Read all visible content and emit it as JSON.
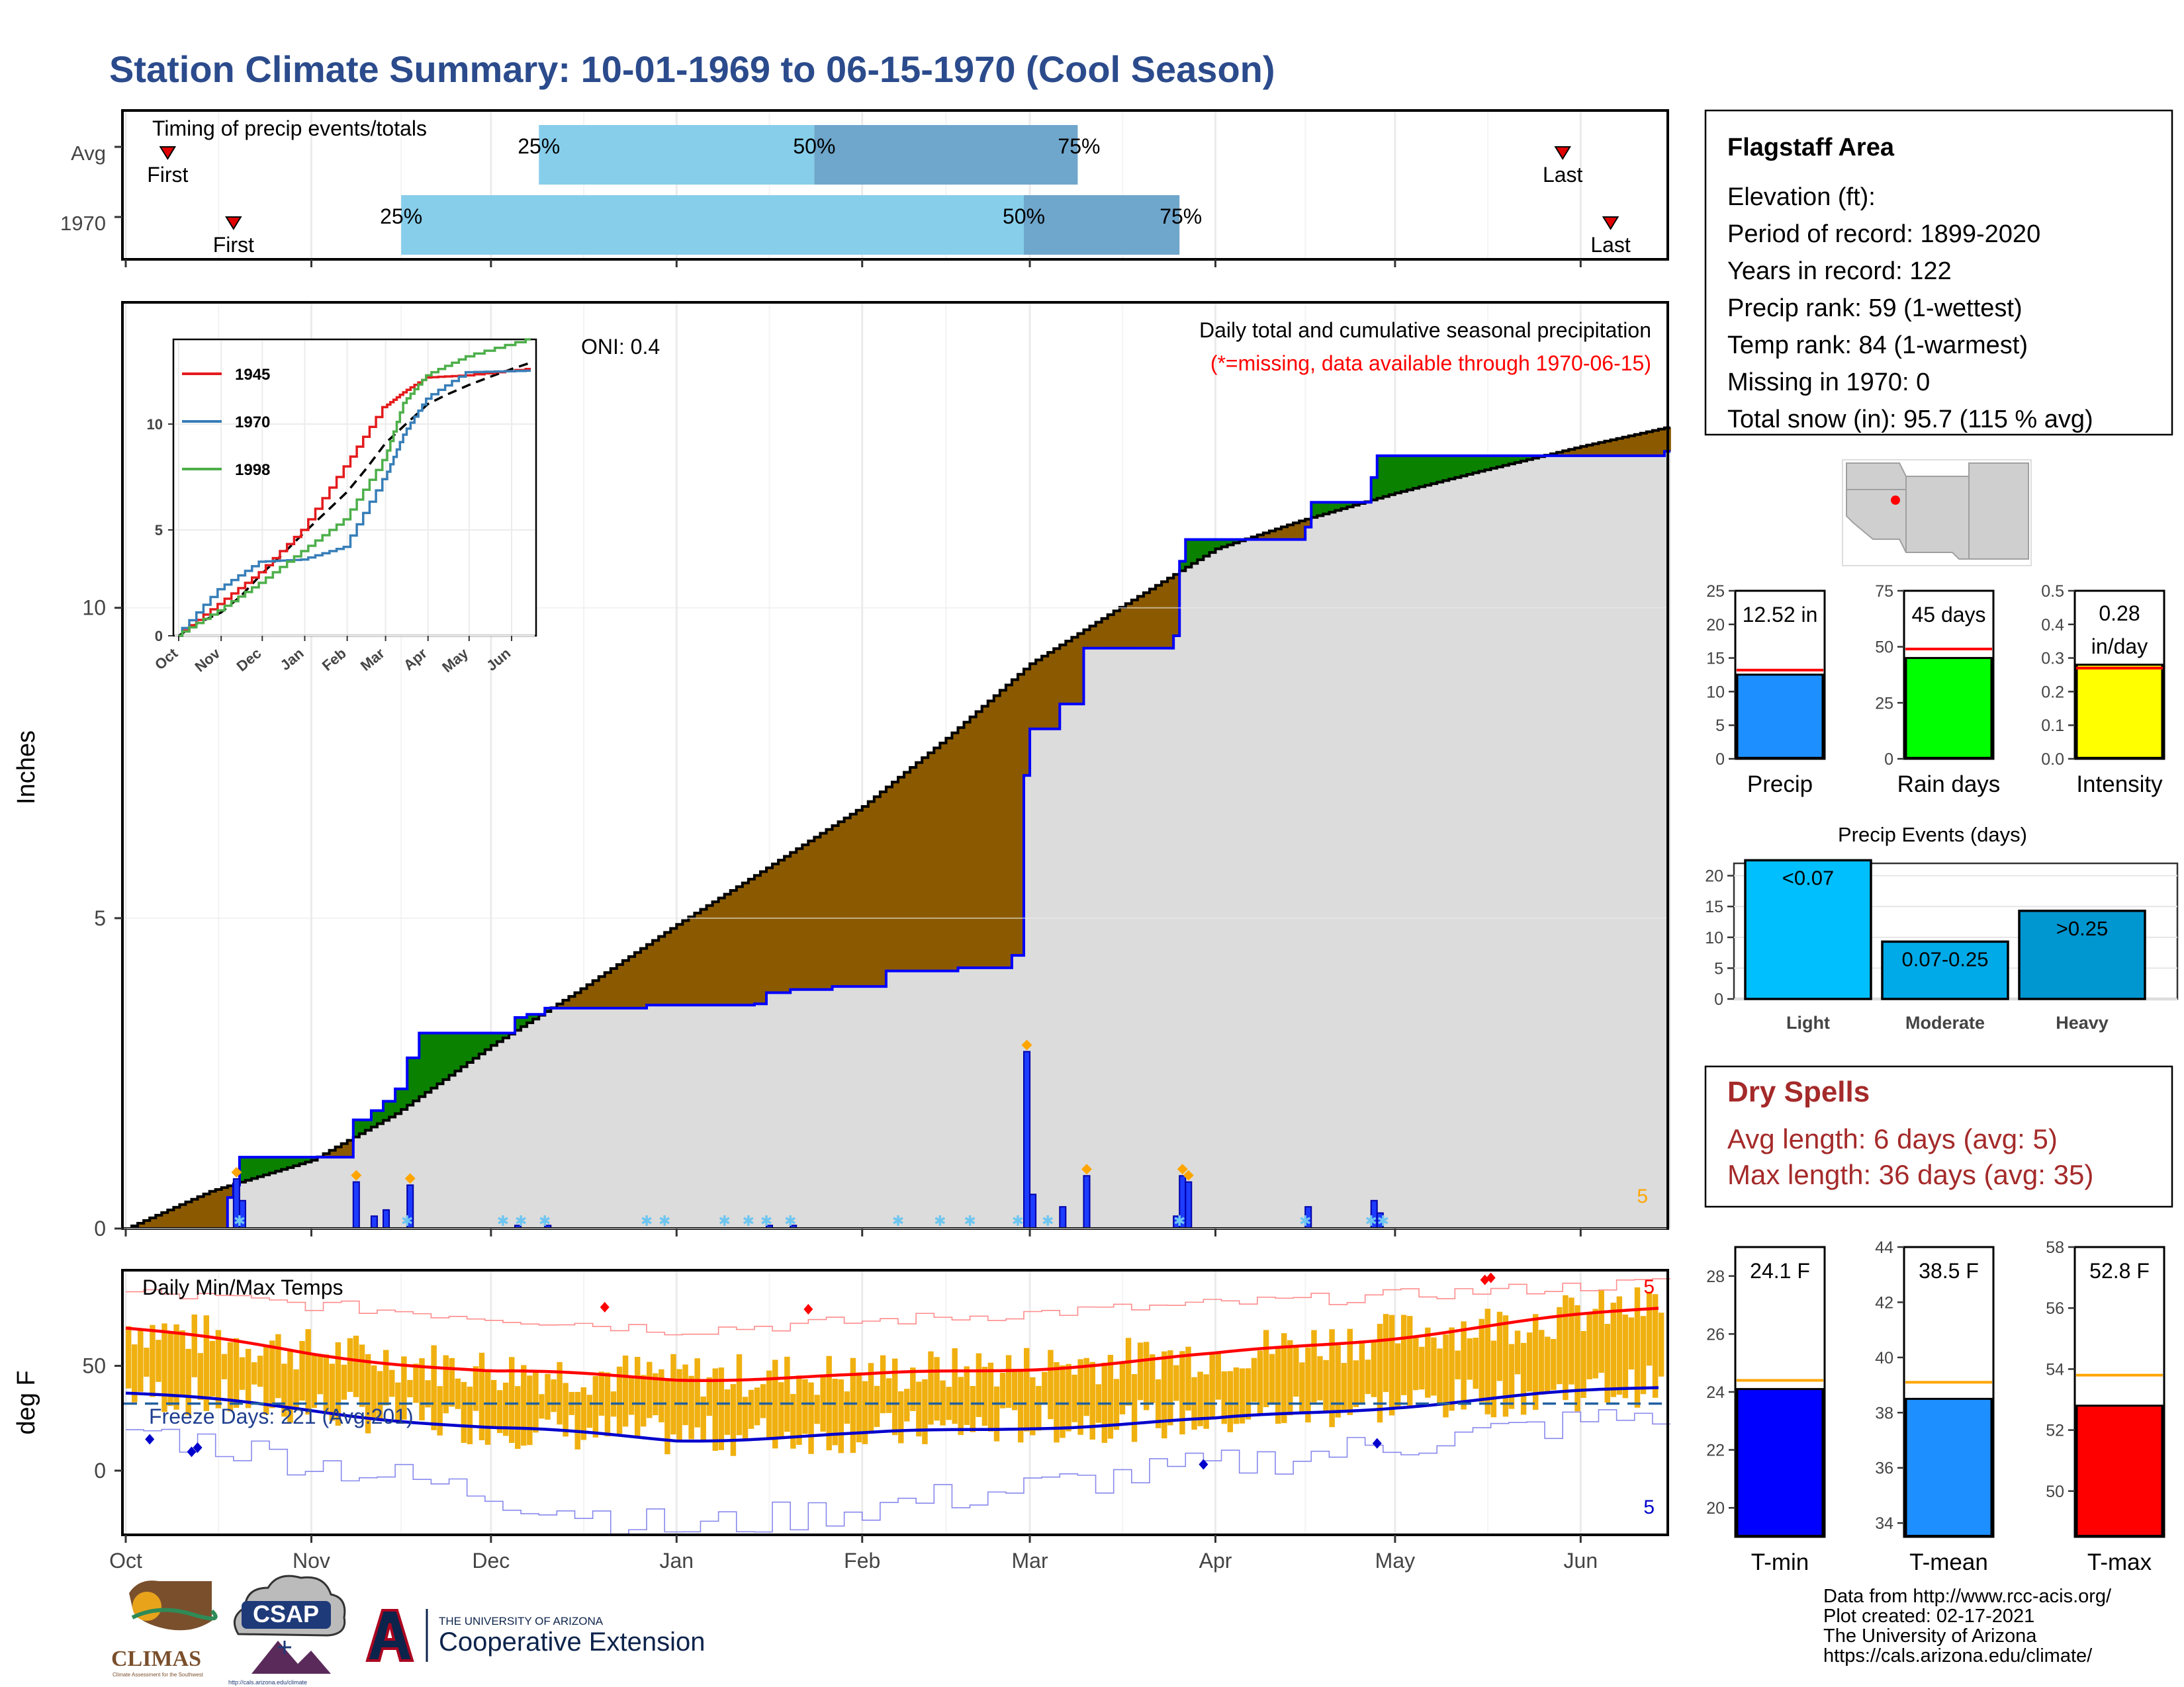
{
  "title": "Station Climate Summary: 10-01-1969 to 06-15-1970 (Cool Season)",
  "colors": {
    "title": "#2b4b8c",
    "precip_fill": "#dcdcdc",
    "above_avg": "#0a8200",
    "below_avg": "#8b5a00",
    "obs_line": "#0000ff",
    "timing_light": "#87ceeb",
    "timing_dark": "#6fa6cc",
    "temp_bar": "#f0b010",
    "tmax_avg": "#ff0000",
    "tmin_avg": "#0000cc",
    "dry_spells": "#a52a2a"
  },
  "timing": {
    "title": "Timing of precip events/totals",
    "rows": [
      {
        "label": "Avg",
        "first_label": "First",
        "last_label": "Last",
        "p25_label": "25%",
        "p50_label": "50%",
        "p75_label": "75%",
        "first": "1969-10-08",
        "p25": "1969-12-09",
        "p50": "1970-01-24",
        "p75": "1970-03-09",
        "last": "1970-05-29"
      },
      {
        "label": "1970",
        "first_label": "First",
        "last_label": "Last",
        "p25_label": "25%",
        "p50_label": "50%",
        "p75_label": "75%",
        "first": "1969-10-19",
        "p25": "1969-11-16",
        "p50": "1970-02-28",
        "p75": "1970-03-26",
        "last": "1970-06-06"
      }
    ]
  },
  "precip_panel": {
    "ylabel": "Inches",
    "title": "Daily total and cumulative seasonal precipitation",
    "missing_note": "(*=missing, data available through 1970-06-15)",
    "oni": "ONI: 0.4",
    "count_label": "5",
    "yticks": [
      "0",
      "5",
      "10"
    ]
  },
  "inset": {
    "yticks": [
      "0",
      "5",
      "10"
    ],
    "months": [
      "Oct",
      "Nov",
      "Dec",
      "Jan",
      "Feb",
      "Mar",
      "Apr",
      "May",
      "Jun"
    ],
    "legend": [
      {
        "name": "1945",
        "color": "#e41a1c"
      },
      {
        "name": "1970",
        "color": "#377eb8"
      },
      {
        "name": "1998",
        "color": "#4daf4a"
      }
    ]
  },
  "temp_panel": {
    "ylabel": "deg F",
    "title": "Daily Min/Max Temps",
    "freeze": "Freeze Days: 221 (Avg:201)",
    "max_count": "5",
    "min_count": "5",
    "yticks": [
      "0",
      "50"
    ]
  },
  "months": [
    "Oct",
    "Nov",
    "Dec",
    "Jan",
    "Feb",
    "Mar",
    "Apr",
    "May",
    "Jun"
  ],
  "info": {
    "name": "Flagstaff Area",
    "lines": [
      "Elevation (ft):",
      "Period of record: 1899-2020",
      "Years in record: 122",
      "Precip rank: 59 (1-wettest)",
      "Temp rank: 84 (1-warmest)",
      "Missing in 1970: 0",
      "Total snow (in): 95.7 (115 % avg)"
    ]
  },
  "chart_data": [
    {
      "type": "area",
      "title": "Daily total and cumulative seasonal precipitation",
      "ylabel": "Inches",
      "ylim": [
        0,
        14
      ],
      "x_range": [
        "1969-10-01",
        "1970-06-15"
      ],
      "series": [
        {
          "name": "observed cumulative",
          "points": [
            [
              "1969-10-01",
              0
            ],
            [
              "1969-10-18",
              0.5
            ],
            [
              "1969-10-19",
              0.7
            ],
            [
              "1969-10-20",
              1.15
            ],
            [
              "1969-11-07",
              1.15
            ],
            [
              "1969-11-08",
              1.75
            ],
            [
              "1969-11-10",
              1.75
            ],
            [
              "1969-11-11",
              1.9
            ],
            [
              "1969-11-13",
              2.05
            ],
            [
              "1969-11-15",
              2.25
            ],
            [
              "1969-11-17",
              2.75
            ],
            [
              "1969-11-19",
              3.15
            ],
            [
              "1969-12-04",
              3.15
            ],
            [
              "1969-12-05",
              3.4
            ],
            [
              "1969-12-07",
              3.45
            ],
            [
              "1969-12-10",
              3.55
            ],
            [
              "1969-12-26",
              3.55
            ],
            [
              "1969-12-27",
              3.6
            ],
            [
              "1970-01-14",
              3.62
            ],
            [
              "1970-01-16",
              3.8
            ],
            [
              "1970-01-20",
              3.85
            ],
            [
              "1970-01-27",
              3.9
            ],
            [
              "1970-02-05",
              4.15
            ],
            [
              "1970-02-17",
              4.2
            ],
            [
              "1970-02-26",
              4.4
            ],
            [
              "1970-02-28",
              7.3
            ],
            [
              "1970-03-01",
              8.05
            ],
            [
              "1970-03-06",
              8.45
            ],
            [
              "1970-03-10",
              9.35
            ],
            [
              "1970-03-25",
              9.55
            ],
            [
              "1970-03-26",
              10.75
            ],
            [
              "1970-03-27",
              11.1
            ],
            [
              "1970-04-16",
              11.3
            ],
            [
              "1970-04-17",
              11.7
            ],
            [
              "1970-04-27",
              12.1
            ],
            [
              "1970-04-28",
              12.45
            ],
            [
              "1970-06-15",
              12.52
            ]
          ]
        },
        {
          "name": "average cumulative",
          "points": [
            [
              "1969-10-01",
              0
            ],
            [
              "1969-10-15",
              0.6
            ],
            [
              "1969-11-01",
              1.1
            ],
            [
              "1969-11-15",
              1.85
            ],
            [
              "1969-12-01",
              2.95
            ],
            [
              "1969-12-15",
              3.8
            ],
            [
              "1970-01-01",
              4.9
            ],
            [
              "1970-01-15",
              5.75
            ],
            [
              "1970-02-01",
              6.8
            ],
            [
              "1970-02-15",
              7.9
            ],
            [
              "1970-03-01",
              9.1
            ],
            [
              "1970-03-15",
              9.95
            ],
            [
              "1970-04-01",
              10.95
            ],
            [
              "1970-04-15",
              11.4
            ],
            [
              "1970-05-01",
              11.85
            ],
            [
              "1970-05-15",
              12.2
            ],
            [
              "1970-06-01",
              12.6
            ],
            [
              "1970-06-15",
              12.9
            ]
          ]
        },
        {
          "name": "daily precip",
          "points": [
            [
              "1969-10-19",
              0.8
            ],
            [
              "1969-10-20",
              0.45
            ],
            [
              "1969-11-08",
              0.75
            ],
            [
              "1969-11-11",
              0.2
            ],
            [
              "1969-11-13",
              0.3
            ],
            [
              "1969-11-17",
              0.7
            ],
            [
              "1969-12-05",
              0.05
            ],
            [
              "1969-12-10",
              0.05
            ],
            [
              "1970-01-16",
              0.05
            ],
            [
              "1970-01-20",
              0.05
            ],
            [
              "1970-02-28",
              2.85
            ],
            [
              "1970-03-01",
              0.55
            ],
            [
              "1970-03-06",
              0.35
            ],
            [
              "1970-03-10",
              0.85
            ],
            [
              "1970-03-25",
              0.2
            ],
            [
              "1970-03-26",
              0.85
            ],
            [
              "1970-03-27",
              0.75
            ],
            [
              "1970-04-16",
              0.35
            ],
            [
              "1970-04-27",
              0.45
            ],
            [
              "1970-04-28",
              0.25
            ]
          ]
        }
      ]
    },
    {
      "type": "line",
      "title": "inset cumulative precipitation",
      "ylim": [
        0,
        13
      ],
      "series": [
        {
          "name": "1945",
          "points": [
            [
              "10-01",
              0
            ],
            [
              "11-01",
              1.5
            ],
            [
              "12-01",
              3
            ],
            [
              "01-01",
              5
            ],
            [
              "02-01",
              8
            ],
            [
              "03-01",
              10.8
            ],
            [
              "03-15",
              11.5
            ],
            [
              "04-01",
              12.2
            ],
            [
              "05-01",
              12.3
            ],
            [
              "06-15",
              12.6
            ]
          ]
        },
        {
          "name": "1970",
          "points": [
            [
              "10-01",
              0
            ],
            [
              "11-01",
              2.2
            ],
            [
              "12-01",
              3.5
            ],
            [
              "01-01",
              3.6
            ],
            [
              "02-01",
              4.2
            ],
            [
              "03-01",
              7.4
            ],
            [
              "03-15",
              9.5
            ],
            [
              "04-01",
              11.2
            ],
            [
              "05-01",
              12.45
            ],
            [
              "06-15",
              12.52
            ]
          ]
        },
        {
          "name": "1998",
          "points": [
            [
              "10-01",
              0
            ],
            [
              "11-01",
              1.2
            ],
            [
              "12-01",
              2.5
            ],
            [
              "01-01",
              4
            ],
            [
              "02-01",
              5.5
            ],
            [
              "03-01",
              8.3
            ],
            [
              "03-15",
              11
            ],
            [
              "04-01",
              12.3
            ],
            [
              "05-01",
              13.2
            ],
            [
              "06-15",
              14
            ]
          ]
        }
      ]
    },
    {
      "type": "bar",
      "title": "Daily Min/Max Temps",
      "ylabel": "deg F",
      "ylim": [
        -30,
        95
      ],
      "series": [
        {
          "name": "avg max",
          "points": [
            [
              "1969-10-01",
              68
            ],
            [
              "1969-11-01",
              56
            ],
            [
              "1969-12-01",
              47
            ],
            [
              "1970-01-01",
              44
            ],
            [
              "1970-02-01",
              45
            ],
            [
              "1970-03-01",
              49
            ],
            [
              "1970-04-01",
              55
            ],
            [
              "1970-05-01",
              64
            ],
            [
              "1970-06-15",
              78
            ]
          ]
        },
        {
          "name": "avg min",
          "points": [
            [
              "1969-10-01",
              37
            ],
            [
              "1969-11-01",
              29
            ],
            [
              "1969-12-01",
              20
            ],
            [
              "1970-01-01",
              15
            ],
            [
              "1970-02-01",
              17
            ],
            [
              "1970-03-01",
              21
            ],
            [
              "1970-04-01",
              24
            ],
            [
              "1970-05-01",
              31
            ],
            [
              "1970-06-15",
              40
            ]
          ]
        },
        {
          "name": "record max",
          "points": [
            [
              "1969-10-01",
              85
            ],
            [
              "1970-01-01",
              67
            ],
            [
              "1970-06-15",
              90
            ]
          ]
        },
        {
          "name": "record min",
          "points": [
            [
              "1969-10-01",
              20
            ],
            [
              "1970-01-01",
              -28
            ],
            [
              "1970-06-15",
              28
            ]
          ]
        }
      ],
      "freeze_line": 32
    },
    {
      "type": "bar",
      "title": "Precip",
      "categories": [
        "Precip"
      ],
      "values": [
        12.52
      ],
      "value_label": "12.52 in",
      "average": 13.2,
      "ylim": [
        0,
        25
      ],
      "yticks": [
        "0",
        "5",
        "10",
        "15",
        "20",
        "25"
      ]
    },
    {
      "type": "bar",
      "title": "Rain days",
      "categories": [
        "Rain days"
      ],
      "values": [
        45
      ],
      "value_label": "45 days",
      "average": 49,
      "ylim": [
        0,
        75
      ],
      "yticks": [
        "0",
        "25",
        "50",
        "75"
      ]
    },
    {
      "type": "bar",
      "title": "Intensity",
      "categories": [
        "Intensity"
      ],
      "values": [
        0.28
      ],
      "value_label_1": "0.28",
      "value_label_2": "in/day",
      "average": 0.27,
      "ylim": [
        0,
        0.5
      ],
      "yticks": [
        "0.0",
        "0.1",
        "0.2",
        "0.3",
        "0.4",
        "0.5"
      ]
    },
    {
      "type": "bar",
      "title": "Precip Events (days)",
      "categories": [
        "Light",
        "Moderate",
        "Heavy"
      ],
      "bar_labels": [
        "<0.07",
        "0.07-0.25",
        ">0.25"
      ],
      "values": [
        22.5,
        9.3,
        14.3
      ],
      "ylim": [
        0,
        22
      ],
      "yticks": [
        "0",
        "5",
        "10",
        "15",
        "20"
      ]
    },
    {
      "type": "bar",
      "title": "T-min",
      "categories": [
        "T-min"
      ],
      "values": [
        24.1
      ],
      "value_label": "24.1 F",
      "average": 24.4,
      "ylim": [
        19,
        29
      ],
      "yticks": [
        "20",
        "22",
        "24",
        "26",
        "28"
      ]
    },
    {
      "type": "bar",
      "title": "T-mean",
      "categories": [
        "T-mean"
      ],
      "values": [
        38.5
      ],
      "value_label": "38.5 F",
      "average": 39.1,
      "ylim": [
        33.5,
        44
      ],
      "yticks": [
        "34",
        "36",
        "38",
        "40",
        "42",
        "44"
      ]
    },
    {
      "type": "bar",
      "title": "T-max",
      "categories": [
        "T-max"
      ],
      "values": [
        52.8
      ],
      "value_label": "52.8 F",
      "average": 53.8,
      "ylim": [
        48.5,
        58
      ],
      "yticks": [
        "50",
        "52",
        "54",
        "56",
        "58"
      ]
    }
  ],
  "dry_spells": {
    "title": "Dry Spells",
    "avg": "Avg length: 6 days (avg: 5)",
    "max": "Max length: 36 days (avg: 35)"
  },
  "footer": {
    "lines": [
      "Data from http://www.rcc-acis.org/",
      "Plot created: 02-17-2021",
      "The University of Arizona",
      "https://cals.arizona.edu/climate/"
    ],
    "climas": "CLIMAS",
    "csap": "CSAP",
    "csap_url": "http://cals.arizona.edu/climate",
    "ua_small": "THE UNIVERSITY OF ARIZONA",
    "ua_big": "Cooperative Extension"
  }
}
